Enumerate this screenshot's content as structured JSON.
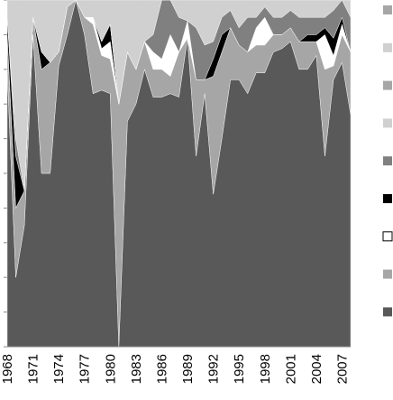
{
  "chart_data": {
    "type": "area",
    "stacked": "percent",
    "title": "",
    "xlabel": "",
    "ylabel": "",
    "ylim": [
      0,
      100
    ],
    "grid": false,
    "legend_position": "right",
    "x": [
      1968,
      1969,
      1970,
      1971,
      1972,
      1973,
      1974,
      1975,
      1976,
      1977,
      1978,
      1979,
      1980,
      1981,
      1982,
      1983,
      1984,
      1985,
      1986,
      1987,
      1988,
      1989,
      1990,
      1991,
      1992,
      1993,
      1994,
      1995,
      1996,
      1997,
      1998,
      1999,
      2000,
      2001,
      2002,
      2003,
      2004,
      2005,
      2006,
      2007,
      2008
    ],
    "x_tick_labels": [
      "1968",
      "1971",
      "1974",
      "1977",
      "1980",
      "1983",
      "1986",
      "1989",
      "1992",
      "1995",
      "1998",
      "2001",
      "2004",
      "2007"
    ],
    "series": [
      {
        "color": "#595959",
        "values": [
          80,
          20,
          35,
          90,
          50,
          50,
          81,
          90,
          100,
          90,
          73,
          74,
          73,
          0,
          65,
          70,
          80,
          72,
          72,
          73,
          72,
          89,
          55,
          73,
          44,
          60,
          77,
          77,
          73,
          79,
          79,
          85,
          86,
          88,
          80,
          80,
          84,
          55,
          77,
          82,
          67
        ]
      },
      {
        "color": "#a6a6a6",
        "values": [
          10,
          20,
          10,
          5,
          30,
          32,
          4,
          8,
          0,
          5,
          20,
          10,
          10,
          70,
          20,
          10,
          8,
          8,
          8,
          5,
          13,
          0,
          22,
          4,
          34,
          25,
          15,
          10,
          12,
          8,
          8,
          5,
          4,
          4,
          8,
          8,
          4,
          25,
          4,
          8,
          18
        ]
      },
      {
        "color": "#ffffff",
        "values": [
          0,
          0,
          0,
          0,
          0,
          0,
          0,
          0,
          0,
          0,
          2,
          2,
          5,
          0,
          0,
          0,
          0,
          5,
          3,
          12,
          0,
          5,
          0,
          0,
          0,
          0,
          0,
          0,
          0,
          5,
          8,
          0,
          0,
          0,
          0,
          0,
          0,
          10,
          3,
          3,
          0
        ]
      },
      {
        "color": "#000000",
        "values": [
          5,
          15,
          0,
          0,
          5,
          0,
          0,
          0,
          0,
          0,
          0,
          2,
          5,
          0,
          0,
          0,
          0,
          0,
          0,
          0,
          0,
          0,
          0,
          0,
          5,
          5,
          0,
          0,
          0,
          0,
          0,
          0,
          0,
          0,
          0,
          2,
          2,
          2,
          5,
          2,
          0
        ]
      },
      {
        "color": "#808080",
        "values": [
          0,
          5,
          0,
          0,
          0,
          0,
          0,
          0,
          0,
          0,
          0,
          0,
          0,
          0,
          0,
          0,
          0,
          5,
          17,
          10,
          10,
          0,
          15,
          10,
          5,
          5,
          5,
          5,
          10,
          3,
          3,
          5,
          5,
          5,
          7,
          5,
          5,
          3,
          8,
          5,
          10
        ]
      },
      {
        "color": "#d0d0d0",
        "values": [
          5,
          40,
          55,
          5,
          15,
          18,
          15,
          2,
          0,
          5,
          5,
          12,
          7,
          30,
          15,
          20,
          12,
          10,
          0,
          0,
          5,
          6,
          8,
          13,
          12,
          5,
          3,
          8,
          5,
          5,
          2,
          5,
          5,
          3,
          5,
          5,
          5,
          5,
          3,
          0,
          5
        ]
      }
    ],
    "legend_colors": [
      "#a6a6a6",
      "#d0d0d0",
      "#a6a6a6",
      "#d0d0d0",
      "#808080",
      "#000000",
      "#ffffff",
      "#a6a6a6",
      "#595959"
    ]
  }
}
